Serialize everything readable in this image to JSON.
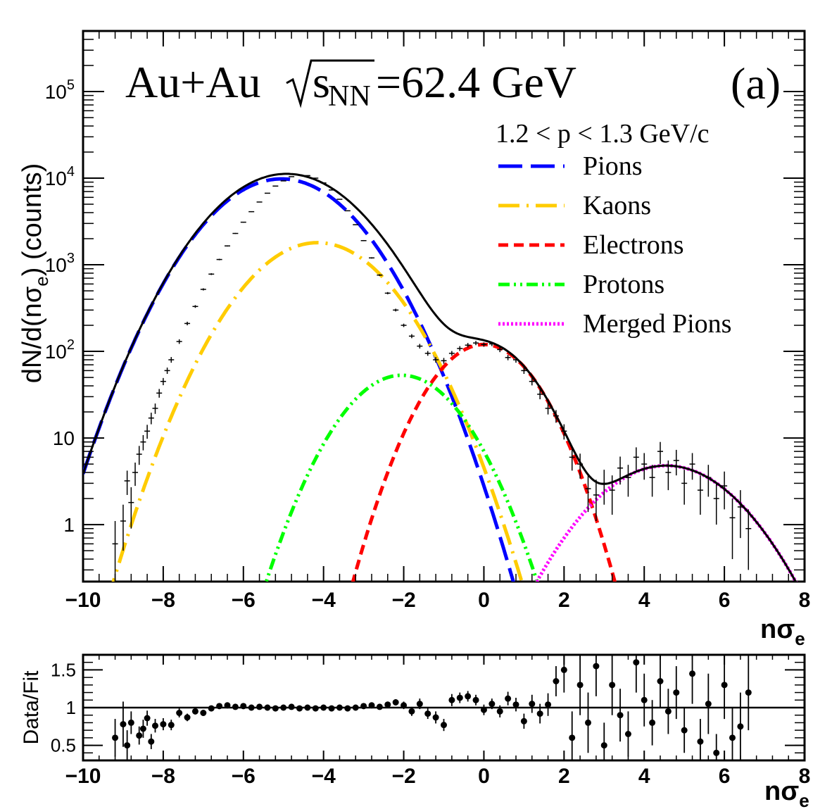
{
  "chart_data": {
    "type": "line",
    "annotation_main": "Au+Au",
    "annotation_energy_s": "s",
    "annotation_energy_sub": "NN",
    "annotation_energy_value": "=62.4 GeV",
    "panel_label": "(a)",
    "momentum_range": "1.2 < p < 1.3 GeV/c",
    "ylabel_top": "dN/d(nσe) (counts)",
    "ylabel_top_parts": [
      "dN/d(nσ",
      "e",
      ") (counts)"
    ],
    "xlabel_main": "nσ",
    "xlabel_sub": "e",
    "ylabel_bottom": "Data/Fit",
    "xlim": [
      -10,
      8
    ],
    "ylim_top": [
      0.22,
      500000
    ],
    "ylim_bottom": [
      0.3,
      1.7
    ],
    "x_ticks": [
      {
        "value": -10,
        "label": "−10"
      },
      {
        "value": -8,
        "label": "−8"
      },
      {
        "value": -6,
        "label": "−6"
      },
      {
        "value": -4,
        "label": "−4"
      },
      {
        "value": -2,
        "label": "−2"
      },
      {
        "value": 0,
        "label": "0"
      },
      {
        "value": 2,
        "label": "2"
      },
      {
        "value": 4,
        "label": "4"
      },
      {
        "value": 6,
        "label": "6"
      },
      {
        "value": 8,
        "label": "8"
      }
    ],
    "y_ticks_top": [
      {
        "value": 1,
        "base": "1",
        "exp": ""
      },
      {
        "value": 10,
        "base": "10",
        "exp": ""
      },
      {
        "value": 100,
        "base": "10",
        "exp": "2"
      },
      {
        "value": 1000,
        "base": "10",
        "exp": "3"
      },
      {
        "value": 10000,
        "base": "10",
        "exp": "4"
      },
      {
        "value": 100000,
        "base": "10",
        "exp": "5"
      }
    ],
    "y_ticks_bottom": [
      {
        "value": 0.5,
        "label": "0.5"
      },
      {
        "value": 1,
        "label": "1"
      },
      {
        "value": 1.5,
        "label": "1.5"
      }
    ],
    "series": [
      {
        "name": "Pions",
        "color": "#0000ff",
        "style": "long-dash",
        "amplitude": 9800,
        "mean": -5.05,
        "sigma": 1.25
      },
      {
        "name": "Kaons",
        "color": "#ffcc00",
        "style": "dash-dot",
        "amplitude": 1800,
        "mean": -4.15,
        "sigma": 1.2
      },
      {
        "name": "Electrons",
        "color": "#ff0000",
        "style": "dash",
        "amplitude": 120,
        "mean": 0.0,
        "sigma": 0.92
      },
      {
        "name": "Protons",
        "color": "#00ff00",
        "style": "dash-dot-dot",
        "amplitude": 53,
        "mean": -2.05,
        "sigma": 1.02
      },
      {
        "name": "Merged Pions",
        "color": "#ff00ff",
        "style": "dotted",
        "amplitude": 4.8,
        "mean": 4.55,
        "sigma": 1.3
      }
    ],
    "total_fit": {
      "color": "#000000",
      "style": "solid"
    },
    "data_points": [
      {
        "x": -9.2,
        "y": 0.6,
        "err": 0.5
      },
      {
        "x": -9.0,
        "y": 1.1,
        "err": 0.6
      },
      {
        "x": -8.9,
        "y": 3.2,
        "err": 1.0
      },
      {
        "x": -8.8,
        "y": 1.8,
        "err": 0.9
      },
      {
        "x": -8.7,
        "y": 4.0,
        "err": 1.2
      },
      {
        "x": -8.6,
        "y": 6.5,
        "err": 1.6
      },
      {
        "x": -8.5,
        "y": 9.0,
        "err": 1.8
      },
      {
        "x": -8.4,
        "y": 12,
        "err": 2.2
      },
      {
        "x": -8.3,
        "y": 17,
        "err": 2.6
      },
      {
        "x": -8.2,
        "y": 22,
        "err": 3.0
      },
      {
        "x": -8.1,
        "y": 33,
        "err": 3.8
      },
      {
        "x": -8.0,
        "y": 45,
        "err": 4.3
      },
      {
        "x": -7.9,
        "y": 60,
        "err": 5.0
      },
      {
        "x": -7.8,
        "y": 80,
        "err": 6
      },
      {
        "x": -7.6,
        "y": 130,
        "err": 8
      },
      {
        "x": -7.4,
        "y": 210,
        "err": 10
      },
      {
        "x": -7.2,
        "y": 330,
        "err": 12
      },
      {
        "x": -7.0,
        "y": 520,
        "err": 15
      },
      {
        "x": -6.8,
        "y": 780,
        "err": 18
      },
      {
        "x": -6.6,
        "y": 1150,
        "err": 22
      },
      {
        "x": -6.4,
        "y": 1650,
        "err": 26
      },
      {
        "x": -6.2,
        "y": 2300,
        "err": 30
      },
      {
        "x": -6.0,
        "y": 3100,
        "err": 35
      },
      {
        "x": -5.8,
        "y": 4100,
        "err": 40
      },
      {
        "x": -5.6,
        "y": 5300,
        "err": 45
      },
      {
        "x": -5.4,
        "y": 6700,
        "err": 50
      },
      {
        "x": -5.2,
        "y": 8100,
        "err": 55
      },
      {
        "x": -5.0,
        "y": 9300,
        "err": 60
      },
      {
        "x": -4.8,
        "y": 10400,
        "err": 64
      },
      {
        "x": -4.6,
        "y": 10900,
        "err": 66
      },
      {
        "x": -4.4,
        "y": 10700,
        "err": 65
      },
      {
        "x": -4.2,
        "y": 10000,
        "err": 63
      },
      {
        "x": -4.0,
        "y": 8800,
        "err": 59
      },
      {
        "x": -3.8,
        "y": 7300,
        "err": 54
      },
      {
        "x": -3.6,
        "y": 5700,
        "err": 48
      },
      {
        "x": -3.4,
        "y": 4200,
        "err": 41
      },
      {
        "x": -3.2,
        "y": 2900,
        "err": 34
      },
      {
        "x": -3.0,
        "y": 1900,
        "err": 28
      },
      {
        "x": -2.8,
        "y": 1200,
        "err": 22
      },
      {
        "x": -2.6,
        "y": 760,
        "err": 18
      },
      {
        "x": -2.4,
        "y": 470,
        "err": 14
      },
      {
        "x": -2.2,
        "y": 300,
        "err": 11
      },
      {
        "x": -2.0,
        "y": 200,
        "err": 9
      },
      {
        "x": -1.8,
        "y": 150,
        "err": 8
      },
      {
        "x": -1.6,
        "y": 115,
        "err": 7
      },
      {
        "x": -1.4,
        "y": 95,
        "err": 6
      },
      {
        "x": -1.2,
        "y": 80,
        "err": 6
      },
      {
        "x": -1.0,
        "y": 78,
        "err": 6
      },
      {
        "x": -0.8,
        "y": 95,
        "err": 6
      },
      {
        "x": -0.6,
        "y": 108,
        "err": 7
      },
      {
        "x": -0.4,
        "y": 118,
        "err": 7
      },
      {
        "x": -0.2,
        "y": 125,
        "err": 7
      },
      {
        "x": 0.0,
        "y": 120,
        "err": 7
      },
      {
        "x": 0.2,
        "y": 122,
        "err": 7
      },
      {
        "x": 0.4,
        "y": 105,
        "err": 7
      },
      {
        "x": 0.6,
        "y": 85,
        "err": 6
      },
      {
        "x": 0.8,
        "y": 80,
        "err": 6
      },
      {
        "x": 1.0,
        "y": 60,
        "err": 5
      },
      {
        "x": 1.2,
        "y": 45,
        "err": 4.5
      },
      {
        "x": 1.4,
        "y": 32,
        "err": 4
      },
      {
        "x": 1.6,
        "y": 22,
        "err": 3.3
      },
      {
        "x": 1.8,
        "y": 18,
        "err": 3.0
      },
      {
        "x": 2.0,
        "y": 12,
        "err": 2.4
      },
      {
        "x": 2.2,
        "y": 6,
        "err": 1.8
      },
      {
        "x": 2.4,
        "y": 5,
        "err": 1.6
      },
      {
        "x": 2.6,
        "y": 2.6,
        "err": 1.2
      },
      {
        "x": 2.8,
        "y": 2.2,
        "err": 1.1
      },
      {
        "x": 3.0,
        "y": 3.0,
        "err": 1.3
      },
      {
        "x": 3.2,
        "y": 2.5,
        "err": 1.2
      },
      {
        "x": 3.4,
        "y": 4.5,
        "err": 1.6
      },
      {
        "x": 3.6,
        "y": 3.5,
        "err": 1.4
      },
      {
        "x": 3.8,
        "y": 6.0,
        "err": 1.8
      },
      {
        "x": 4.0,
        "y": 5.0,
        "err": 1.7
      },
      {
        "x": 4.2,
        "y": 3.5,
        "err": 1.4
      },
      {
        "x": 4.4,
        "y": 7.0,
        "err": 2.0
      },
      {
        "x": 4.6,
        "y": 4.0,
        "err": 1.5
      },
      {
        "x": 4.8,
        "y": 5.5,
        "err": 1.8
      },
      {
        "x": 5.0,
        "y": 3.0,
        "err": 1.3
      },
      {
        "x": 5.2,
        "y": 5.0,
        "err": 1.7
      },
      {
        "x": 5.4,
        "y": 2.5,
        "err": 1.2
      },
      {
        "x": 5.6,
        "y": 3.5,
        "err": 1.4
      },
      {
        "x": 5.8,
        "y": 2.0,
        "err": 1.0
      },
      {
        "x": 6.0,
        "y": 2.8,
        "err": 1.3
      },
      {
        "x": 6.2,
        "y": 1.2,
        "err": 0.8
      },
      {
        "x": 6.4,
        "y": 1.6,
        "err": 0.9
      },
      {
        "x": 6.6,
        "y": 0.9,
        "err": 0.6
      }
    ],
    "ratio_points": [
      {
        "x": -9.2,
        "y": 0.6,
        "err": 0.25
      },
      {
        "x": -9.0,
        "y": 0.78,
        "err": 0.3
      },
      {
        "x": -8.9,
        "y": 0.5,
        "err": 0.2
      },
      {
        "x": -8.8,
        "y": 0.8,
        "err": 0.15
      },
      {
        "x": -8.6,
        "y": 0.63,
        "err": 0.12
      },
      {
        "x": -8.5,
        "y": 0.72,
        "err": 0.12
      },
      {
        "x": -8.4,
        "y": 0.86,
        "err": 0.1
      },
      {
        "x": -8.3,
        "y": 0.55,
        "err": 0.1
      },
      {
        "x": -8.2,
        "y": 0.76,
        "err": 0.09
      },
      {
        "x": -8.0,
        "y": 0.78,
        "err": 0.08
      },
      {
        "x": -7.8,
        "y": 0.77,
        "err": 0.07
      },
      {
        "x": -7.6,
        "y": 0.93,
        "err": 0.06
      },
      {
        "x": -7.4,
        "y": 0.87,
        "err": 0.05
      },
      {
        "x": -7.2,
        "y": 0.95,
        "err": 0.04
      },
      {
        "x": -7.0,
        "y": 0.93,
        "err": 0.03
      },
      {
        "x": -6.8,
        "y": 0.99,
        "err": 0.03
      },
      {
        "x": -6.6,
        "y": 1.02,
        "err": 0.02
      },
      {
        "x": -6.4,
        "y": 1.03,
        "err": 0.02
      },
      {
        "x": -6.2,
        "y": 1.01,
        "err": 0.02
      },
      {
        "x": -6.0,
        "y": 1.02,
        "err": 0.02
      },
      {
        "x": -5.8,
        "y": 1.0,
        "err": 0.02
      },
      {
        "x": -5.6,
        "y": 1.01,
        "err": 0.02
      },
      {
        "x": -5.4,
        "y": 1.0,
        "err": 0.02
      },
      {
        "x": -5.2,
        "y": 0.99,
        "err": 0.02
      },
      {
        "x": -5.0,
        "y": 1.0,
        "err": 0.02
      },
      {
        "x": -4.8,
        "y": 1.01,
        "err": 0.02
      },
      {
        "x": -4.6,
        "y": 0.99,
        "err": 0.02
      },
      {
        "x": -4.4,
        "y": 1.0,
        "err": 0.02
      },
      {
        "x": -4.2,
        "y": 0.99,
        "err": 0.02
      },
      {
        "x": -4.0,
        "y": 1.0,
        "err": 0.02
      },
      {
        "x": -3.8,
        "y": 0.99,
        "err": 0.02
      },
      {
        "x": -3.6,
        "y": 1.0,
        "err": 0.02
      },
      {
        "x": -3.4,
        "y": 0.99,
        "err": 0.02
      },
      {
        "x": -3.2,
        "y": 1.0,
        "err": 0.02
      },
      {
        "x": -3.0,
        "y": 1.02,
        "err": 0.02
      },
      {
        "x": -2.8,
        "y": 1.03,
        "err": 0.03
      },
      {
        "x": -2.6,
        "y": 1.01,
        "err": 0.03
      },
      {
        "x": -2.4,
        "y": 1.04,
        "err": 0.03
      },
      {
        "x": -2.2,
        "y": 1.07,
        "err": 0.04
      },
      {
        "x": -2.0,
        "y": 1.03,
        "err": 0.05
      },
      {
        "x": -1.8,
        "y": 0.95,
        "err": 0.06
      },
      {
        "x": -1.6,
        "y": 1.05,
        "err": 0.07
      },
      {
        "x": -1.4,
        "y": 0.92,
        "err": 0.07
      },
      {
        "x": -1.2,
        "y": 0.87,
        "err": 0.08
      },
      {
        "x": -1.0,
        "y": 0.77,
        "err": 0.08
      },
      {
        "x": -0.8,
        "y": 1.1,
        "err": 0.08
      },
      {
        "x": -0.6,
        "y": 1.13,
        "err": 0.07
      },
      {
        "x": -0.4,
        "y": 1.15,
        "err": 0.07
      },
      {
        "x": -0.2,
        "y": 1.1,
        "err": 0.07
      },
      {
        "x": 0.0,
        "y": 0.97,
        "err": 0.07
      },
      {
        "x": 0.2,
        "y": 1.05,
        "err": 0.07
      },
      {
        "x": 0.4,
        "y": 0.95,
        "err": 0.08
      },
      {
        "x": 0.6,
        "y": 1.12,
        "err": 0.09
      },
      {
        "x": 0.8,
        "y": 1.04,
        "err": 0.09
      },
      {
        "x": 1.0,
        "y": 0.82,
        "err": 0.1
      },
      {
        "x": 1.2,
        "y": 1.05,
        "err": 0.12
      },
      {
        "x": 1.4,
        "y": 0.92,
        "err": 0.13
      },
      {
        "x": 1.6,
        "y": 1.04,
        "err": 0.15
      },
      {
        "x": 1.8,
        "y": 1.35,
        "err": 0.2
      },
      {
        "x": 2.0,
        "y": 1.5,
        "err": 0.3
      },
      {
        "x": 2.2,
        "y": 0.6,
        "err": 0.35
      },
      {
        "x": 2.4,
        "y": 1.3,
        "err": 0.4
      },
      {
        "x": 2.6,
        "y": 0.8,
        "err": 0.4
      },
      {
        "x": 2.8,
        "y": 1.55,
        "err": 0.4
      },
      {
        "x": 3.0,
        "y": 0.5,
        "err": 0.3
      },
      {
        "x": 3.2,
        "y": 1.3,
        "err": 0.4
      },
      {
        "x": 3.4,
        "y": 0.9,
        "err": 0.35
      },
      {
        "x": 3.6,
        "y": 0.65,
        "err": 0.3
      },
      {
        "x": 3.8,
        "y": 1.6,
        "err": 0.4
      },
      {
        "x": 4.0,
        "y": 1.1,
        "err": 0.35
      },
      {
        "x": 4.2,
        "y": 0.8,
        "err": 0.3
      },
      {
        "x": 4.4,
        "y": 1.35,
        "err": 0.35
      },
      {
        "x": 4.6,
        "y": 0.95,
        "err": 0.3
      },
      {
        "x": 4.8,
        "y": 1.2,
        "err": 0.35
      },
      {
        "x": 5.0,
        "y": 0.7,
        "err": 0.3
      },
      {
        "x": 5.2,
        "y": 1.45,
        "err": 0.4
      },
      {
        "x": 5.4,
        "y": 0.55,
        "err": 0.3
      },
      {
        "x": 5.6,
        "y": 1.05,
        "err": 0.4
      },
      {
        "x": 5.8,
        "y": 0.4,
        "err": 0.25
      },
      {
        "x": 6.0,
        "y": 1.3,
        "err": 0.45
      },
      {
        "x": 6.2,
        "y": 0.6,
        "err": 0.4
      },
      {
        "x": 6.4,
        "y": 0.75,
        "err": 0.45
      },
      {
        "x": 6.6,
        "y": 1.2,
        "err": 0.5
      }
    ],
    "legend_position": "top-right",
    "grid": false
  }
}
